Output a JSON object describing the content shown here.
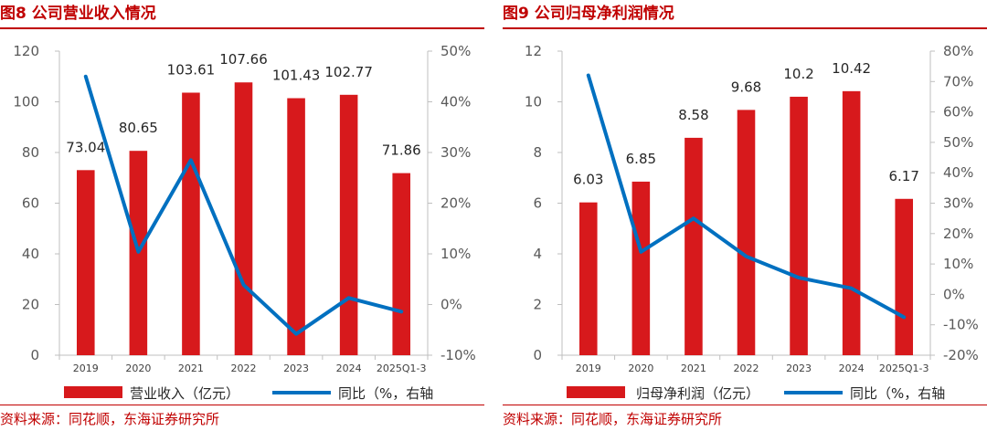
{
  "panels": [
    {
      "title": "图8  公司营业收入情况",
      "source": "资料来源：同花顺，东海证券研究所",
      "chart_data": {
        "type": "bar",
        "categories": [
          "2019",
          "2020",
          "2021",
          "2022",
          "2023",
          "2024",
          "2025Q1-3"
        ],
        "series": [
          {
            "name": "营业收入（亿元）",
            "type": "bar",
            "axis": "left",
            "color": "#d7191c",
            "values": [
              73.04,
              80.65,
              103.61,
              107.66,
              101.43,
              102.77,
              71.86
            ],
            "labels": [
              "73.04",
              "80.65",
              "103.61",
              "107.66",
              "101.43",
              "102.77",
              "71.86"
            ]
          },
          {
            "name": "同比（%，右轴",
            "type": "line",
            "axis": "right",
            "color": "#0070c0",
            "values": [
              45.0,
              10.4,
              28.5,
              3.9,
              -5.8,
              1.3,
              -1.4
            ]
          }
        ],
        "ylim": [
          0,
          120
        ],
        "yticks": [
          "0",
          "20",
          "40",
          "60",
          "80",
          "100",
          "120"
        ],
        "y2lim": [
          -10,
          50
        ],
        "y2ticks": [
          "-10%",
          "0%",
          "10%",
          "20%",
          "30%",
          "40%",
          "50%"
        ],
        "legend": "bottom"
      }
    },
    {
      "title": "图9  公司归母净利润情况",
      "source": "资料来源：同花顺，东海证券研究所",
      "chart_data": {
        "type": "bar",
        "categories": [
          "2019",
          "2020",
          "2021",
          "2022",
          "2023",
          "2024",
          "2025Q1-3"
        ],
        "series": [
          {
            "name": "归母净利润（亿元）",
            "type": "bar",
            "axis": "left",
            "color": "#d7191c",
            "values": [
              6.03,
              6.85,
              8.58,
              9.68,
              10.2,
              10.42,
              6.17
            ],
            "labels": [
              "6.03",
              "6.85",
              "8.58",
              "9.68",
              "10.2",
              "10.42",
              "6.17"
            ]
          },
          {
            "name": "同比（%，右轴",
            "type": "line",
            "axis": "right",
            "color": "#0070c0",
            "values": [
              72.0,
              14.0,
              25.0,
              12.5,
              5.5,
              2.0,
              -7.5
            ]
          }
        ],
        "ylim": [
          0,
          12
        ],
        "yticks": [
          "0",
          "2",
          "4",
          "6",
          "8",
          "10",
          "12"
        ],
        "y2lim": [
          -20,
          80
        ],
        "y2ticks": [
          "-20%",
          "-10%",
          "0%",
          "10%",
          "20%",
          "30%",
          "40%",
          "50%",
          "60%",
          "70%",
          "80%"
        ],
        "legend": "bottom"
      }
    }
  ]
}
